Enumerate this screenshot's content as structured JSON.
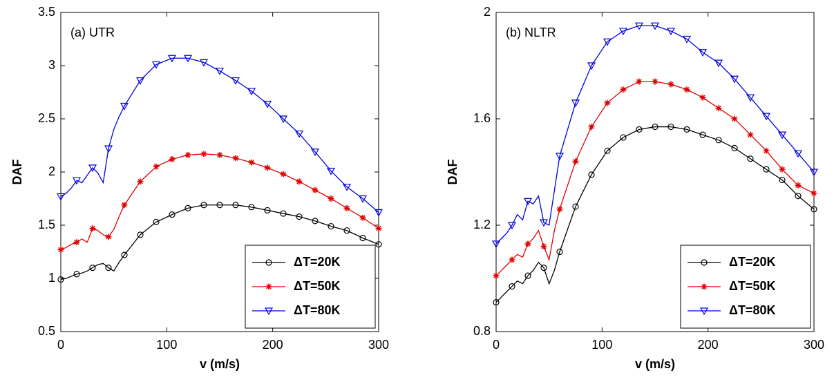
{
  "chart_data": [
    {
      "type": "line",
      "annotation": "(a) UTR",
      "xlabel": "v (m/s)",
      "ylabel": "DAF",
      "x": [
        0,
        5,
        10,
        15,
        20,
        25,
        30,
        35,
        40,
        45,
        50,
        55,
        60,
        75,
        90,
        105,
        120,
        135,
        150,
        165,
        180,
        195,
        210,
        225,
        240,
        255,
        270,
        285,
        300
      ],
      "xlim": [
        0,
        300
      ],
      "xticks": [
        0,
        100,
        200,
        300
      ],
      "ylim": [
        0.5,
        3.5
      ],
      "yticks": [
        0.5,
        1,
        1.5,
        2,
        2.5,
        3,
        3.5
      ],
      "legend_loc": "lower right",
      "series": [
        {
          "name": "ΔT=20K",
          "color": "#000000",
          "marker": "o",
          "values": [
            0.99,
            1.0,
            1.02,
            1.04,
            1.05,
            1.07,
            1.1,
            1.13,
            1.14,
            1.1,
            1.07,
            1.15,
            1.22,
            1.41,
            1.53,
            1.6,
            1.66,
            1.69,
            1.69,
            1.69,
            1.67,
            1.64,
            1.61,
            1.58,
            1.54,
            1.49,
            1.45,
            1.38,
            1.32
          ]
        },
        {
          "name": "ΔT=50K",
          "color": "#e00000",
          "marker": "*",
          "values": [
            1.27,
            1.29,
            1.32,
            1.34,
            1.37,
            1.34,
            1.47,
            1.45,
            1.41,
            1.39,
            1.46,
            1.58,
            1.69,
            1.91,
            2.05,
            2.12,
            2.16,
            2.17,
            2.16,
            2.13,
            2.09,
            2.04,
            1.98,
            1.91,
            1.83,
            1.75,
            1.66,
            1.57,
            1.47
          ]
        },
        {
          "name": "ΔT=80K",
          "color": "#0000dd",
          "marker": "v",
          "values": [
            1.77,
            1.8,
            1.85,
            1.92,
            1.9,
            1.97,
            2.04,
            1.99,
            1.9,
            2.22,
            2.4,
            2.52,
            2.62,
            2.86,
            3.01,
            3.07,
            3.07,
            3.03,
            2.95,
            2.86,
            2.76,
            2.64,
            2.5,
            2.36,
            2.19,
            2.01,
            1.86,
            1.75,
            1.62
          ]
        }
      ]
    },
    {
      "type": "line",
      "annotation": "(b) NLTR",
      "xlabel": "v (m/s)",
      "ylabel": "DAF",
      "x": [
        0,
        5,
        10,
        15,
        20,
        25,
        30,
        35,
        40,
        45,
        50,
        55,
        60,
        75,
        90,
        105,
        120,
        135,
        150,
        165,
        180,
        195,
        210,
        225,
        240,
        255,
        270,
        285,
        300
      ],
      "xlim": [
        0,
        300
      ],
      "xticks": [
        0,
        100,
        200,
        300
      ],
      "ylim": [
        0.8,
        2
      ],
      "yticks": [
        0.8,
        1.2,
        1.6,
        2
      ],
      "legend_loc": "lower right",
      "series": [
        {
          "name": "ΔT=20K",
          "color": "#000000",
          "marker": "o",
          "values": [
            0.91,
            0.93,
            0.95,
            0.97,
            0.99,
            0.98,
            1.01,
            1.03,
            1.06,
            1.04,
            0.98,
            1.03,
            1.1,
            1.27,
            1.39,
            1.48,
            1.53,
            1.56,
            1.57,
            1.57,
            1.56,
            1.54,
            1.52,
            1.49,
            1.45,
            1.41,
            1.37,
            1.31,
            1.26
          ]
        },
        {
          "name": "ΔT=50K",
          "color": "#e00000",
          "marker": "*",
          "values": [
            1.01,
            1.03,
            1.05,
            1.07,
            1.09,
            1.08,
            1.13,
            1.15,
            1.18,
            1.12,
            1.07,
            1.18,
            1.26,
            1.44,
            1.57,
            1.66,
            1.71,
            1.74,
            1.74,
            1.73,
            1.71,
            1.68,
            1.64,
            1.6,
            1.54,
            1.48,
            1.41,
            1.35,
            1.32
          ]
        },
        {
          "name": "ΔT=80K",
          "color": "#0000dd",
          "marker": "v",
          "values": [
            1.13,
            1.15,
            1.17,
            1.2,
            1.24,
            1.22,
            1.29,
            1.28,
            1.31,
            1.21,
            1.2,
            1.33,
            1.46,
            1.66,
            1.8,
            1.89,
            1.93,
            1.95,
            1.95,
            1.93,
            1.9,
            1.85,
            1.81,
            1.75,
            1.68,
            1.61,
            1.54,
            1.47,
            1.4
          ]
        }
      ]
    }
  ]
}
